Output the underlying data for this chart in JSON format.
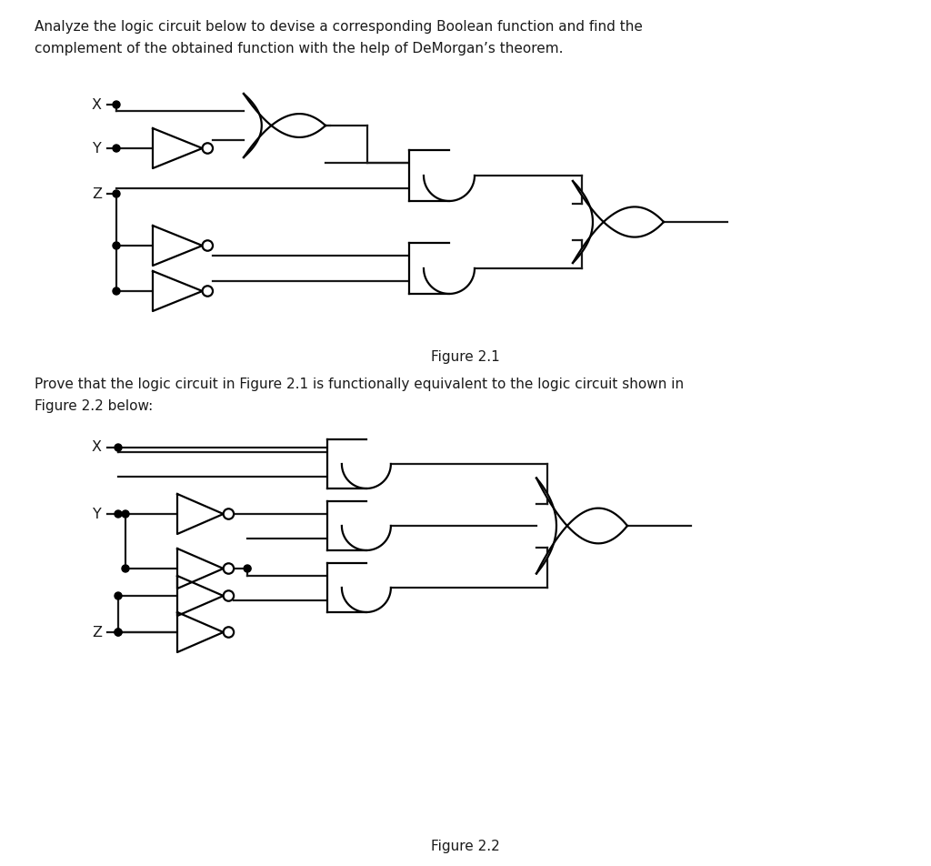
{
  "title_text1": "Analyze the logic circuit below to devise a corresponding Boolean function and find the",
  "title_text2": "complement of the obtained function with the help of DeMorgan’s theorem.",
  "fig1_caption": "Figure 2.1",
  "fig2_text1": "Prove that the logic circuit in Figure 2.1 is functionally equivalent to the logic circuit shown in",
  "fig2_text2": "Figure 2.2 below:",
  "fig2_caption": "Figure 2.2",
  "line_color": "#1a1a1a",
  "bg_color": "#ffffff",
  "text_color": "#1a1a1a",
  "font_size": 11.0,
  "lw": 1.6
}
